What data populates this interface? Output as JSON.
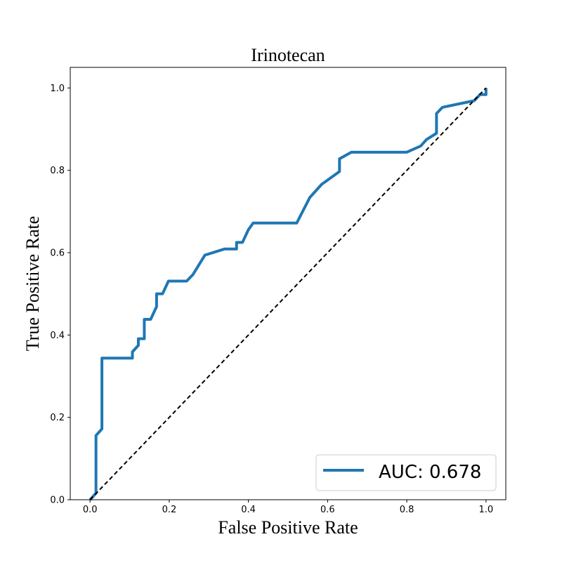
{
  "chart_data": {
    "type": "line",
    "title": "Irinotecan",
    "xlabel": "False Positive Rate",
    "ylabel": "True Positive Rate",
    "xlim": [
      -0.05,
      1.05
    ],
    "ylim": [
      0.0,
      1.05
    ],
    "x_ticks": [
      0.0,
      0.2,
      0.4,
      0.6,
      0.8,
      1.0
    ],
    "x_tick_labels": [
      "0.0",
      "0.2",
      "0.4",
      "0.6",
      "0.8",
      "1.0"
    ],
    "y_ticks": [
      0.0,
      0.2,
      0.4,
      0.6,
      0.8,
      1.0
    ],
    "y_tick_labels": [
      "0.0",
      "0.2",
      "0.4",
      "0.6",
      "0.8",
      "1.0"
    ],
    "grid": false,
    "legend_position": "bottom-right",
    "series": [
      {
        "name": "AUC: 0.678",
        "color": "#1f77b4",
        "style": "solid",
        "x": [
          0.0,
          0.015,
          0.015,
          0.03,
          0.03,
          0.107,
          0.107,
          0.122,
          0.122,
          0.137,
          0.137,
          0.153,
          0.168,
          0.168,
          0.183,
          0.198,
          0.244,
          0.26,
          0.29,
          0.34,
          0.37,
          0.37,
          0.385,
          0.4,
          0.412,
          0.522,
          0.555,
          0.585,
          0.63,
          0.63,
          0.66,
          0.8,
          0.835,
          0.85,
          0.875,
          0.875,
          0.89,
          0.97,
          0.985,
          1.0,
          1.0
        ],
        "y": [
          0.0,
          0.016,
          0.156,
          0.172,
          0.344,
          0.344,
          0.359,
          0.375,
          0.391,
          0.391,
          0.438,
          0.438,
          0.469,
          0.5,
          0.5,
          0.531,
          0.531,
          0.547,
          0.594,
          0.609,
          0.609,
          0.625,
          0.625,
          0.656,
          0.672,
          0.672,
          0.734,
          0.766,
          0.797,
          0.828,
          0.844,
          0.844,
          0.859,
          0.875,
          0.89,
          0.938,
          0.953,
          0.969,
          0.984,
          0.984,
          1.0
        ]
      },
      {
        "name": "",
        "color": "#000000",
        "style": "dashed",
        "x": [
          0.0,
          1.0
        ],
        "y": [
          0.0,
          1.0
        ]
      }
    ]
  }
}
